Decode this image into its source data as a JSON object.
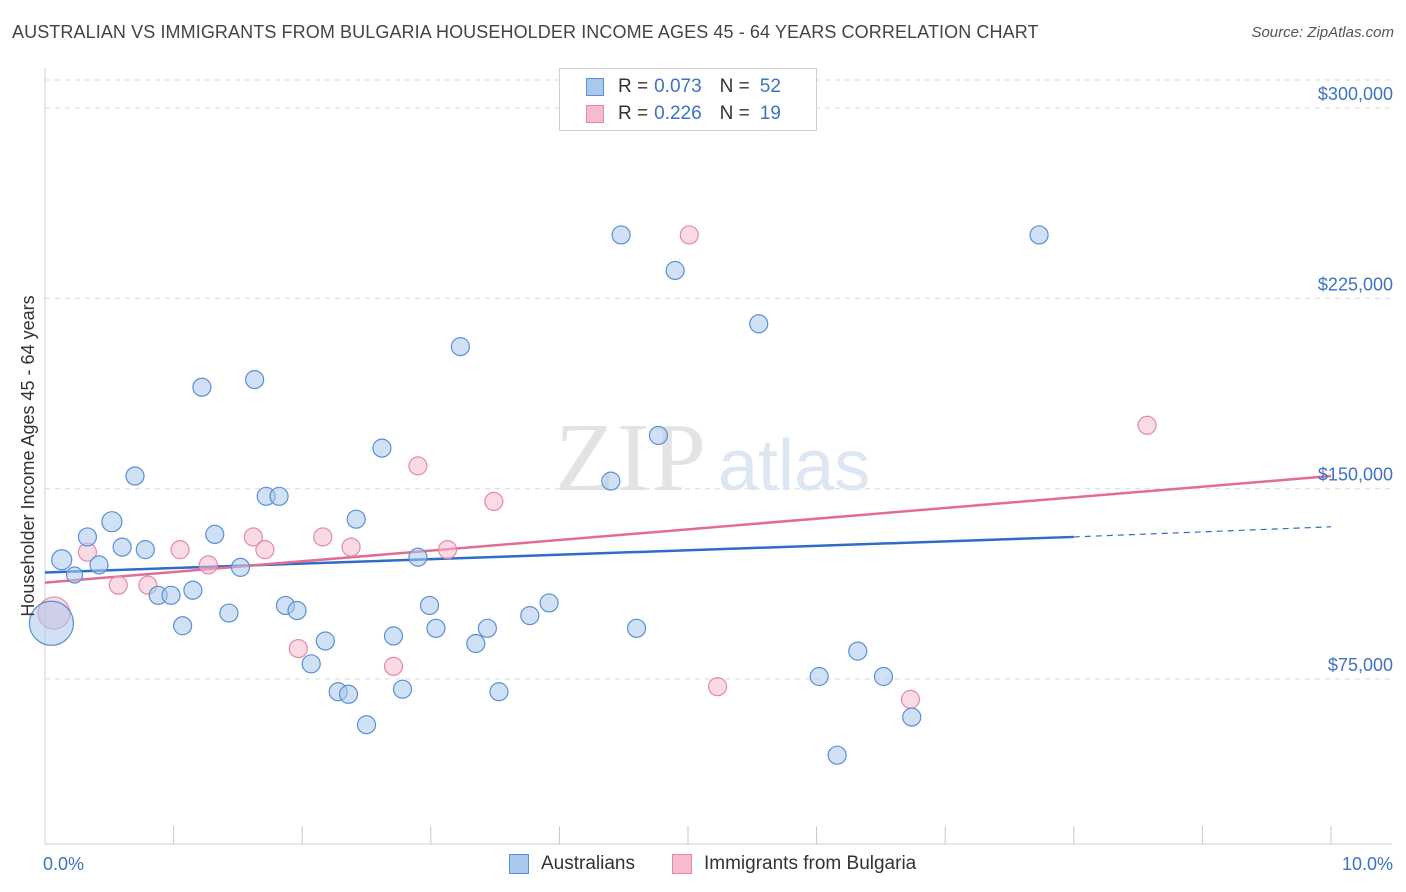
{
  "title": "AUSTRALIAN VS IMMIGRANTS FROM BULGARIA HOUSEHOLDER INCOME AGES 45 - 64 YEARS CORRELATION CHART",
  "source": "Source: ZipAtlas.com",
  "watermark": {
    "zip": "ZIP",
    "atlas": "atlas"
  },
  "legend": {
    "series": [
      {
        "r_label": "R =",
        "r_value": "0.073",
        "n_label": "N =",
        "n_value": "52"
      },
      {
        "r_label": "R =",
        "r_value": "0.226",
        "n_label": "N =",
        "n_value": "19"
      }
    ]
  },
  "colors": {
    "australians_fill": "#aac8ee",
    "australians_stroke": "#5b8fd6",
    "australians_line": "#2f6dc8",
    "bulgaria_fill": "#f6bccd",
    "bulgaria_stroke": "#e48aa6",
    "bulgaria_line": "#e06c98",
    "tick_label": "#3f72c4",
    "grid": "#d9d9d9"
  },
  "chart_data": {
    "type": "scatter",
    "title": "AUSTRALIAN VS IMMIGRANTS FROM BULGARIA HOUSEHOLDER INCOME AGES 45 - 64 YEARS CORRELATION CHART",
    "xlabel": "",
    "ylabel": "Householder Income Ages 45 - 64 years",
    "xlim": [
      0,
      10
    ],
    "ylim": [
      10000,
      315000
    ],
    "x_tick_labels": [
      "0.0%",
      "10.0%"
    ],
    "y_ticks": [
      75000,
      150000,
      225000,
      300000
    ],
    "y_tick_labels": [
      "$75,000",
      "$150,000",
      "$225,000",
      "$300,000"
    ],
    "legend_position": "bottom",
    "series": [
      {
        "name": "Australians",
        "r": 0.073,
        "n": 52,
        "trend": {
          "x0": 0.0,
          "y0": 117000,
          "x1": 8.0,
          "y1": 131000,
          "dash_x1": 10.0,
          "dash_y1": 135000
        },
        "points": [
          [
            0.05,
            97000,
            22
          ],
          [
            0.13,
            122000,
            10
          ],
          [
            0.23,
            116000,
            8
          ],
          [
            0.33,
            131000,
            9
          ],
          [
            0.42,
            120000,
            9
          ],
          [
            0.52,
            137000,
            10
          ],
          [
            0.6,
            127000,
            9
          ],
          [
            0.7,
            155000,
            9
          ],
          [
            0.78,
            126000,
            9
          ],
          [
            0.88,
            108000,
            9
          ],
          [
            0.98,
            108000,
            9
          ],
          [
            1.07,
            96000,
            9
          ],
          [
            1.15,
            110000,
            9
          ],
          [
            1.22,
            190000,
            9
          ],
          [
            1.32,
            132000,
            9
          ],
          [
            1.43,
            101000,
            9
          ],
          [
            1.52,
            119000,
            9
          ],
          [
            1.63,
            193000,
            9
          ],
          [
            1.72,
            147000,
            9
          ],
          [
            1.82,
            147000,
            9
          ],
          [
            1.87,
            104000,
            9
          ],
          [
            1.96,
            102000,
            9
          ],
          [
            2.07,
            81000,
            9
          ],
          [
            2.18,
            90000,
            9
          ],
          [
            2.28,
            70000,
            9
          ],
          [
            2.36,
            69000,
            9
          ],
          [
            2.42,
            138000,
            9
          ],
          [
            2.5,
            57000,
            9
          ],
          [
            2.62,
            166000,
            9
          ],
          [
            2.71,
            92000,
            9
          ],
          [
            2.78,
            71000,
            9
          ],
          [
            2.9,
            123000,
            9
          ],
          [
            2.99,
            104000,
            9
          ],
          [
            3.04,
            95000,
            9
          ],
          [
            3.23,
            206000,
            9
          ],
          [
            3.35,
            89000,
            9
          ],
          [
            3.44,
            95000,
            9
          ],
          [
            3.53,
            70000,
            9
          ],
          [
            3.77,
            100000,
            9
          ],
          [
            3.92,
            105000,
            9
          ],
          [
            4.4,
            153000,
            9
          ],
          [
            4.48,
            250000,
            9
          ],
          [
            4.6,
            95000,
            9
          ],
          [
            4.77,
            171000,
            9
          ],
          [
            4.9,
            236000,
            9
          ],
          [
            5.55,
            215000,
            9
          ],
          [
            6.02,
            76000,
            9
          ],
          [
            6.16,
            45000,
            9
          ],
          [
            6.32,
            86000,
            9
          ],
          [
            6.52,
            76000,
            9
          ],
          [
            6.74,
            60000,
            9
          ],
          [
            7.73,
            250000,
            9
          ]
        ]
      },
      {
        "name": "Immigrants from Bulgaria",
        "r": 0.226,
        "n": 19,
        "trend": {
          "x0": 0.0,
          "y0": 113000,
          "x1": 10.0,
          "y1": 155000
        },
        "points": [
          [
            0.07,
            101000,
            16
          ],
          [
            0.33,
            125000,
            9
          ],
          [
            0.57,
            112000,
            9
          ],
          [
            0.8,
            112000,
            9
          ],
          [
            1.05,
            126000,
            9
          ],
          [
            1.27,
            120000,
            9
          ],
          [
            1.62,
            131000,
            9
          ],
          [
            1.71,
            126000,
            9
          ],
          [
            1.97,
            87000,
            9
          ],
          [
            2.16,
            131000,
            9
          ],
          [
            2.38,
            127000,
            9
          ],
          [
            2.71,
            80000,
            9
          ],
          [
            2.9,
            159000,
            9
          ],
          [
            3.13,
            126000,
            9
          ],
          [
            3.49,
            145000,
            9
          ],
          [
            5.01,
            250000,
            9
          ],
          [
            5.23,
            72000,
            9
          ],
          [
            6.73,
            67000,
            9
          ],
          [
            8.57,
            175000,
            9
          ]
        ]
      }
    ]
  }
}
